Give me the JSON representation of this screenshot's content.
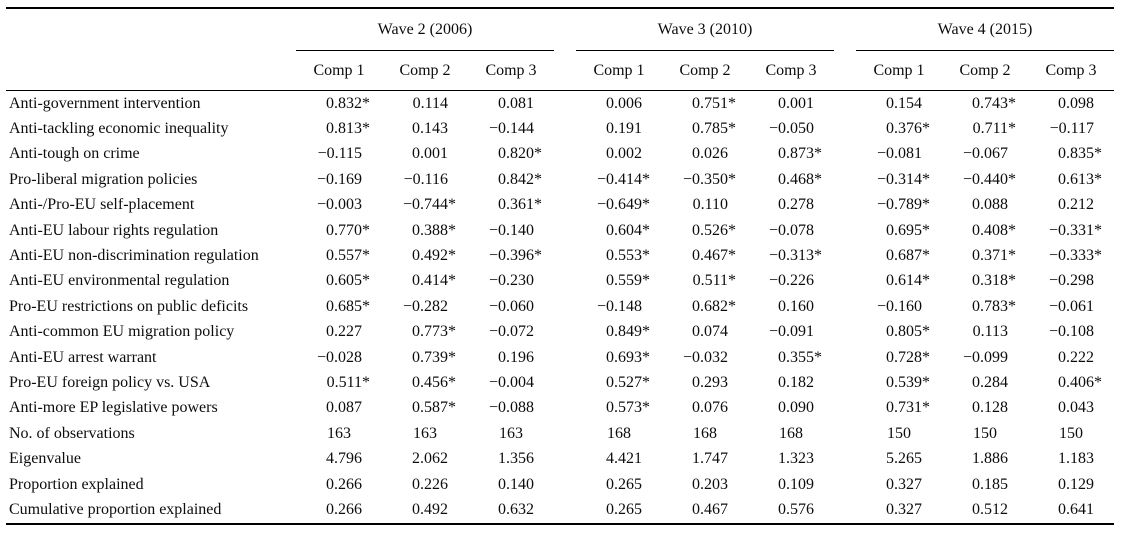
{
  "table": {
    "wave_headers": [
      "Wave 2 (2006)",
      "Wave 3 (2010)",
      "Wave 4 (2015)"
    ],
    "comp_headers": [
      "Comp 1",
      "Comp 2",
      "Comp 3"
    ],
    "significance_marker": "*",
    "rows": [
      {
        "label": "Anti-government intervention",
        "values": [
          "0.832*",
          "0.114",
          "0.081",
          "0.006",
          "0.751*",
          "0.001",
          "0.154",
          "0.743*",
          "0.098"
        ]
      },
      {
        "label": "Anti-tackling economic inequality",
        "values": [
          "0.813*",
          "0.143",
          "−0.144",
          "0.191",
          "0.785*",
          "−0.050",
          "0.376*",
          "0.711*",
          "−0.117"
        ]
      },
      {
        "label": "Anti-tough on crime",
        "values": [
          "−0.115",
          "0.001",
          "0.820*",
          "0.002",
          "0.026",
          "0.873*",
          "−0.081",
          "−0.067",
          "0.835*"
        ]
      },
      {
        "label": "Pro-liberal migration policies",
        "values": [
          "−0.169",
          "−0.116",
          "0.842*",
          "−0.414*",
          "−0.350*",
          "0.468*",
          "−0.314*",
          "−0.440*",
          "0.613*"
        ]
      },
      {
        "label": "Anti-/Pro-EU self-placement",
        "values": [
          "−0.003",
          "−0.744*",
          "0.361*",
          "−0.649*",
          "0.110",
          "0.278",
          "−0.789*",
          "0.088",
          "0.212"
        ]
      },
      {
        "label": "Anti-EU labour rights regulation",
        "values": [
          "0.770*",
          "0.388*",
          "−0.140",
          "0.604*",
          "0.526*",
          "−0.078",
          "0.695*",
          "0.408*",
          "−0.331*"
        ]
      },
      {
        "label": "Anti-EU non-discrimination regulation",
        "values": [
          "0.557*",
          "0.492*",
          "−0.396*",
          "0.553*",
          "0.467*",
          "−0.313*",
          "0.687*",
          "0.371*",
          "−0.333*"
        ]
      },
      {
        "label": "Anti-EU environmental regulation",
        "values": [
          "0.605*",
          "0.414*",
          "−0.230",
          "0.559*",
          "0.511*",
          "−0.226",
          "0.614*",
          "0.318*",
          "−0.298"
        ]
      },
      {
        "label": "Pro-EU restrictions on public deficits",
        "values": [
          "0.685*",
          "−0.282",
          "−0.060",
          "−0.148",
          "0.682*",
          "0.160",
          "−0.160",
          "0.783*",
          "−0.061"
        ]
      },
      {
        "label": "Anti-common EU migration policy",
        "values": [
          "0.227",
          "0.773*",
          "−0.072",
          "0.849*",
          "0.074",
          "−0.091",
          "0.805*",
          "0.113",
          "−0.108"
        ]
      },
      {
        "label": "Anti-EU arrest warrant",
        "values": [
          "−0.028",
          "0.739*",
          "0.196",
          "0.693*",
          "−0.032",
          "0.355*",
          "0.728*",
          "−0.099",
          "0.222"
        ]
      },
      {
        "label": "Pro-EU foreign policy vs. USA",
        "values": [
          "0.511*",
          "0.456*",
          "−0.004",
          "0.527*",
          "0.293",
          "0.182",
          "0.539*",
          "0.284",
          "0.406*"
        ]
      },
      {
        "label": "Anti-more EP legislative powers",
        "values": [
          "0.087",
          "0.587*",
          "−0.088",
          "0.573*",
          "0.076",
          "0.090",
          "0.731*",
          "0.128",
          "0.043"
        ]
      },
      {
        "label": "No. of observations",
        "values": [
          "163",
          "163",
          "163",
          "168",
          "168",
          "168",
          "150",
          "150",
          "150"
        ]
      },
      {
        "label": "Eigenvalue",
        "values": [
          "4.796",
          "2.062",
          "1.356",
          "4.421",
          "1.747",
          "1.323",
          "5.265",
          "1.886",
          "1.183"
        ]
      },
      {
        "label": "Proportion explained",
        "values": [
          "0.266",
          "0.226",
          "0.140",
          "0.265",
          "0.203",
          "0.109",
          "0.327",
          "0.185",
          "0.129"
        ]
      },
      {
        "label": "Cumulative proportion explained",
        "values": [
          "0.266",
          "0.492",
          "0.632",
          "0.265",
          "0.467",
          "0.576",
          "0.327",
          "0.512",
          "0.641"
        ]
      }
    ]
  }
}
